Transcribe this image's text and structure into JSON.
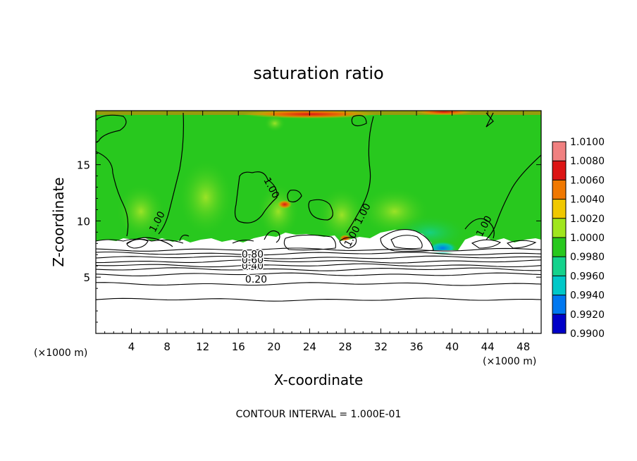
{
  "chart_data": {
    "type": "heatmap",
    "title": "saturation ratio",
    "xlabel": "X-coordinate",
    "ylabel": "Z-coordinate",
    "x_unit_left": "(×1000 m)",
    "x_unit_right": "(×1000 m)",
    "xlim": [
      0,
      50
    ],
    "ylim": [
      0,
      19.8
    ],
    "x_ticks": [
      4,
      8,
      12,
      16,
      20,
      24,
      28,
      32,
      36,
      40,
      44,
      48
    ],
    "y_ticks": [
      5,
      10,
      15
    ],
    "contour_interval_text": "CONTOUR INTERVAL = 1.000E-01",
    "contour_labels": [
      {
        "text": "0.20",
        "x": 18.0,
        "y": 4.5
      },
      {
        "text": "0.40",
        "x": 17.6,
        "y": 5.7
      },
      {
        "text": "0.60",
        "x": 17.6,
        "y": 6.25
      },
      {
        "text": "0.80",
        "x": 17.6,
        "y": 6.75
      },
      {
        "text": "1.00",
        "x": 19.4,
        "y": 12.8
      },
      {
        "text": "1.00",
        "x": 7.2,
        "y": 9.8
      },
      {
        "text": "1.00",
        "x": 30.3,
        "y": 10.5
      },
      {
        "text": "1.00",
        "x": 43.9,
        "y": 9.4
      },
      {
        "text": "1.00",
        "x": 29.1,
        "y": 8.5
      }
    ],
    "colorbar": {
      "levels": [
        "1.0100",
        "1.0080",
        "1.0060",
        "1.0040",
        "1.0020",
        "1.0000",
        "0.9980",
        "0.9960",
        "0.9940",
        "0.9920",
        "0.9900"
      ],
      "colors": [
        "#f08080",
        "#dc1414",
        "#f07800",
        "#f0c800",
        "#a0e61e",
        "#28c81e",
        "#14d28c",
        "#00c8c8",
        "#0078f0",
        "#0000c8",
        "#5a00a0"
      ]
    },
    "subcloud_contours": [
      0.2,
      0.3,
      0.4,
      0.5,
      0.6,
      0.7,
      0.8,
      0.9,
      1.0
    ]
  }
}
